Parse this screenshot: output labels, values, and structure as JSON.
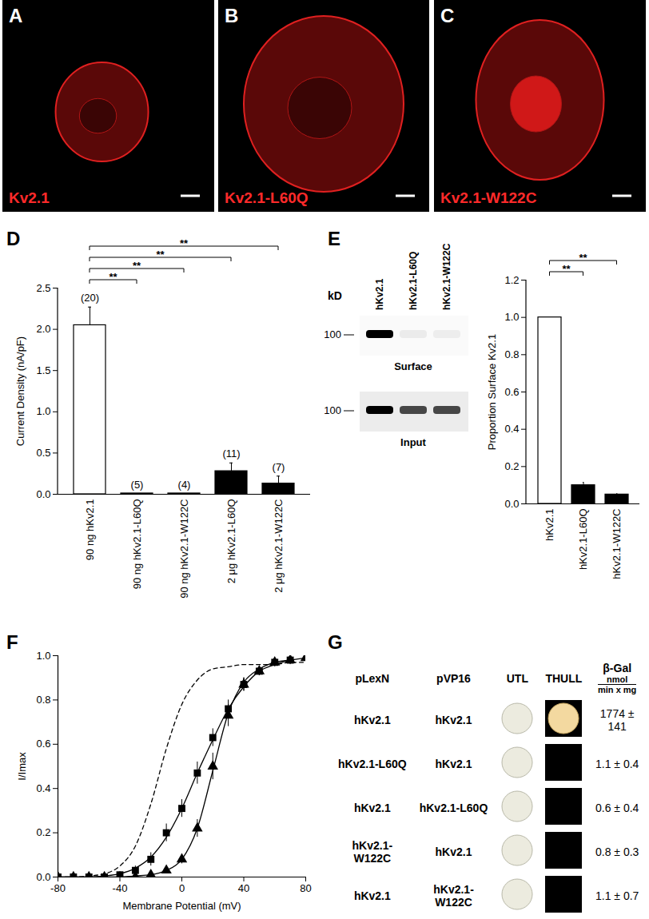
{
  "images": [
    {
      "letter": "A",
      "caption": "Kv2.1"
    },
    {
      "letter": "B",
      "caption": "Kv2.1-L60Q"
    },
    {
      "letter": "C",
      "caption": "Kv2.1-W122C"
    }
  ],
  "chart_data": [
    {
      "letter": "D",
      "type": "bar",
      "categories": [
        "90 ng hKv2.1",
        "90 ng hKv2.1-L60Q",
        "90 ng hKv2.1-W122C",
        "2 μg hKv2.1-L60Q",
        "2 μg hKv2.1-W122C"
      ],
      "values": [
        2.05,
        0.01,
        0.01,
        0.28,
        0.13
      ],
      "errors": [
        0.22,
        0,
        0,
        0.1,
        0.09
      ],
      "colors": [
        "#ffffff",
        "#000000",
        "#000000",
        "#000000",
        "#000000"
      ],
      "ylabel": "Current Density (nA/pF)",
      "ylim": [
        0,
        2.5
      ],
      "yticks": [
        {
          "value": 0,
          "label": "0.0"
        },
        0.5,
        {
          "value": 1,
          "label": "1.0"
        },
        1.5,
        {
          "value": 2,
          "label": "2.0"
        },
        2.5
      ],
      "n_labels": [
        "(20)",
        "(5)",
        "(4)",
        "(11)",
        "(7)"
      ],
      "significance": [
        {
          "from": 0,
          "to": 1,
          "label": "**"
        },
        {
          "from": 0,
          "to": 2,
          "label": "**"
        },
        {
          "from": 0,
          "to": 3,
          "label": "**"
        },
        {
          "from": 0,
          "to": 4,
          "label": "**"
        }
      ]
    },
    {
      "letter": "E",
      "type": "bar",
      "categories": [
        "hKv2.1",
        "hKv2.1-L60Q",
        "hKv2.1-W122C"
      ],
      "values": [
        1.0,
        0.1,
        0.05
      ],
      "errors": [
        0,
        0.015,
        0.004
      ],
      "colors": [
        "#ffffff",
        "#000000",
        "#000000"
      ],
      "ylabel": "Proportion Surface Kv2.1",
      "ylim": [
        0,
        1.2
      ],
      "yticks": [
        {
          "value": 0,
          "label": "0.0"
        },
        0.2,
        0.4,
        0.6,
        0.8,
        {
          "value": 1,
          "label": "1.0"
        },
        1.2
      ],
      "significance": [
        {
          "from": 0,
          "to": 1,
          "label": "**"
        },
        {
          "from": 0,
          "to": 2,
          "label": "**"
        }
      ]
    },
    {
      "letter": "F",
      "type": "scatter",
      "xlabel": "Membrane Potential (mV)",
      "ylabel": "I/Imax",
      "xlim": [
        -80,
        80
      ],
      "xticks": [
        -80,
        -40,
        0,
        40,
        80
      ],
      "ylim": [
        0,
        1
      ],
      "yticks": [
        {
          "value": 0,
          "label": "0.0"
        },
        0.2,
        0.4,
        0.6,
        0.8,
        {
          "value": 1,
          "label": "1.0"
        }
      ],
      "series": [
        {
          "type": "scatter",
          "marker": "square",
          "color": "#000000",
          "x": [
            -80,
            -70,
            -60,
            -50,
            -40,
            -30,
            -20,
            -10,
            0,
            10,
            20,
            30,
            40,
            50,
            60,
            70
          ],
          "values": [
            0,
            0,
            0,
            0,
            0.01,
            0.03,
            0.08,
            0.2,
            0.31,
            0.47,
            0.63,
            0.76,
            0.87,
            0.93,
            0.97,
            0.98
          ],
          "errors": [
            0,
            0,
            0,
            0,
            0,
            0.02,
            0.03,
            0.04,
            0.04,
            0.05,
            0.04,
            0.04,
            0.03,
            0.02,
            0.02,
            0.02
          ]
        },
        {
          "type": "scatter",
          "marker": "triangle",
          "color": "#000000",
          "x": [
            -80,
            -70,
            -60,
            -50,
            -40,
            -30,
            -20,
            -10,
            0,
            10,
            20,
            30,
            40,
            50,
            60,
            70,
            80
          ],
          "values": [
            0,
            0,
            0,
            0,
            0,
            0,
            0.01,
            0.03,
            0.08,
            0.22,
            0.5,
            0.73,
            0.87,
            0.93,
            0.97,
            0.98,
            0.99
          ],
          "errors": [
            0,
            0,
            0,
            0,
            0,
            0,
            0,
            0,
            0.02,
            0.04,
            0.06,
            0.05,
            0.03,
            0.02,
            0.01,
            0.01,
            0.01
          ]
        },
        {
          "type": "line",
          "line_style": "solid",
          "color": "#000000",
          "x": [
            -80,
            -70,
            -60,
            -50,
            -40,
            -30,
            -20,
            -10,
            0,
            10,
            20,
            30,
            40,
            50,
            60,
            70
          ],
          "values": [
            0,
            0,
            0,
            0.005,
            0.015,
            0.04,
            0.09,
            0.18,
            0.31,
            0.47,
            0.62,
            0.76,
            0.86,
            0.93,
            0.96,
            0.98
          ]
        },
        {
          "type": "line",
          "line_style": "solid",
          "color": "#000000",
          "x": [
            -80,
            -70,
            -60,
            -50,
            -40,
            -30,
            -20,
            -10,
            0,
            10,
            20,
            30,
            40,
            50,
            60,
            70,
            80
          ],
          "values": [
            0,
            0,
            0,
            0,
            0,
            0.005,
            0.01,
            0.03,
            0.08,
            0.22,
            0.48,
            0.74,
            0.88,
            0.94,
            0.97,
            0.98,
            0.99
          ]
        },
        {
          "type": "line",
          "line_style": "dashed",
          "color": "#000000",
          "x": [
            -80,
            -70,
            -60,
            -50,
            -40,
            -30,
            -20,
            -10,
            0,
            10,
            20,
            30,
            40,
            50,
            60,
            70,
            80
          ],
          "values": [
            0,
            0,
            0.005,
            0.015,
            0.05,
            0.14,
            0.33,
            0.58,
            0.78,
            0.89,
            0.94,
            0.95,
            0.96,
            0.96,
            0.96,
            0.97,
            0.97
          ]
        }
      ]
    }
  ],
  "blot": {
    "unit": "kD",
    "marker": 100,
    "lanes": [
      "hKv2.1",
      "hKv2.1-L60Q",
      "hKv2.1-W122C"
    ],
    "rows": [
      {
        "name": "Surface",
        "bands": [
          1.0,
          0.06,
          0.05
        ]
      },
      {
        "name": "Input",
        "bands": [
          1.0,
          0.7,
          0.7
        ]
      }
    ]
  },
  "table": {
    "letter": "G",
    "header": [
      "pLexN",
      "pVP16",
      "UTL",
      "THULL"
    ],
    "beta_gal": {
      "title": "β-Gal",
      "numerator": "nmol",
      "denominator": "min x mg"
    },
    "rows": [
      {
        "pLexN": "hKv2.1",
        "pVP16": "hKv2.1",
        "UTL": true,
        "THULL": true,
        "beta_gal": "1774 ± 141"
      },
      {
        "pLexN": "hKv2.1-L60Q",
        "pVP16": "hKv2.1",
        "UTL": true,
        "THULL": false,
        "beta_gal": "1.1 ± 0.4"
      },
      {
        "pLexN": "hKv2.1",
        "pVP16": "hKv2.1-L60Q",
        "UTL": true,
        "THULL": false,
        "beta_gal": "0.6 ± 0.4"
      },
      {
        "pLexN": "hKv2.1-W122C",
        "pVP16": "hKv2.1",
        "UTL": true,
        "THULL": false,
        "beta_gal": "0.8 ± 0.3"
      },
      {
        "pLexN": "hKv2.1",
        "pVP16": "hKv2.1-W122C",
        "UTL": true,
        "THULL": false,
        "beta_gal": "1.1 ± 0.7"
      }
    ]
  }
}
